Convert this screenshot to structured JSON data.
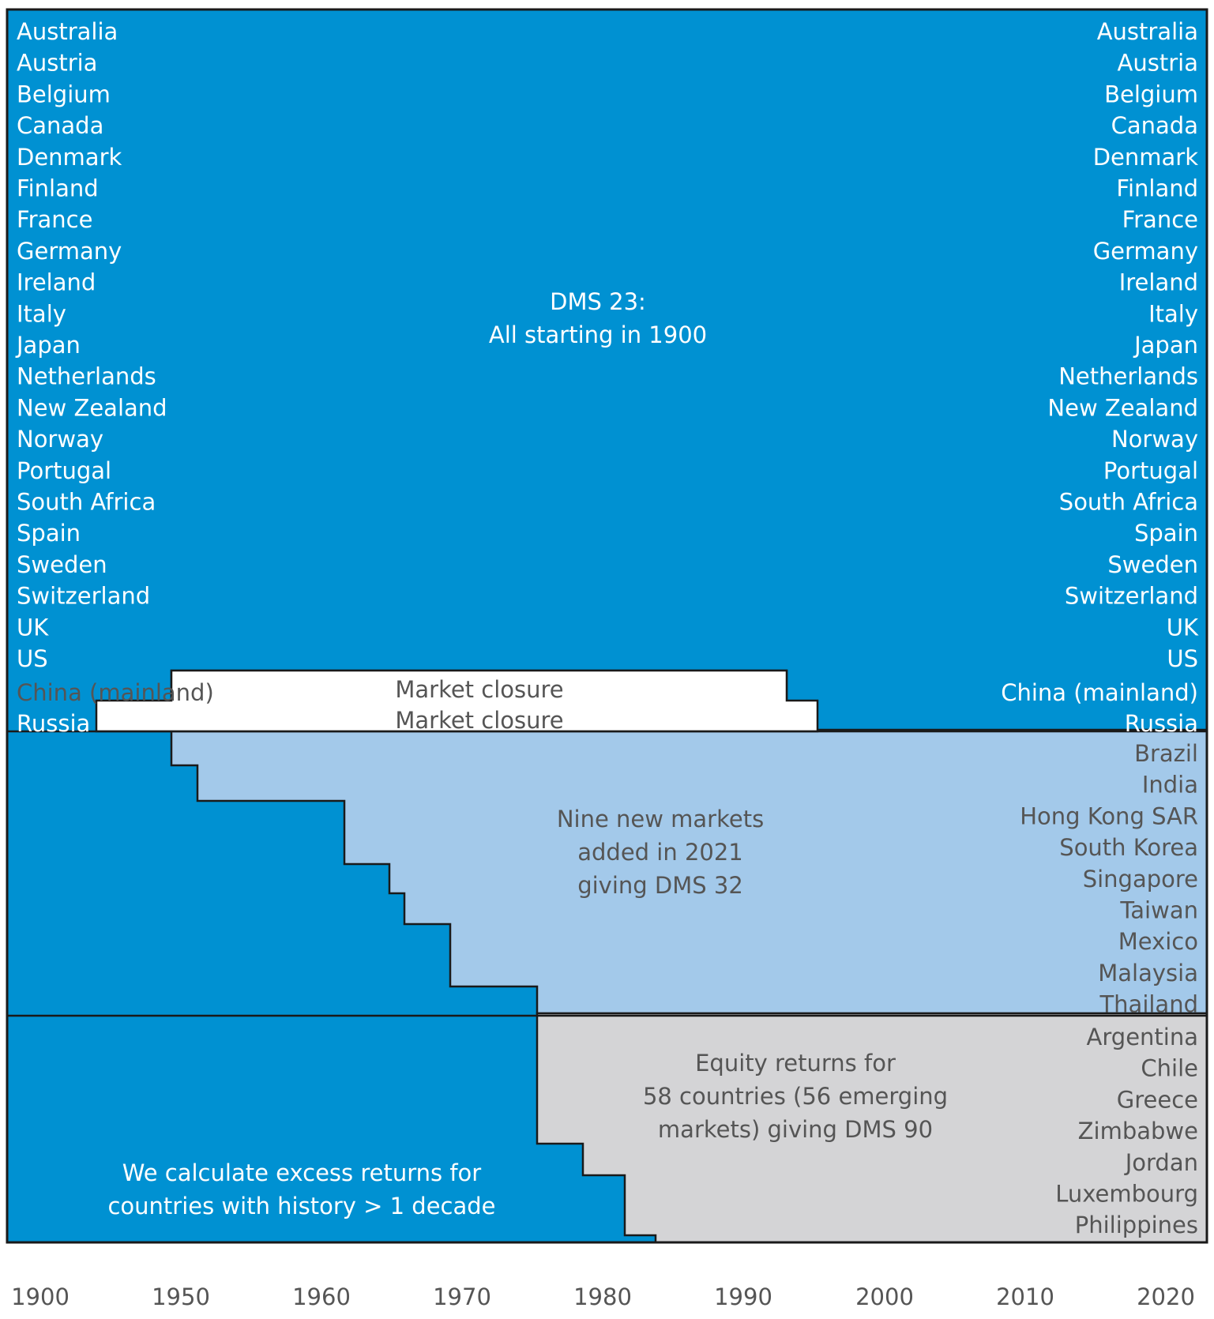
{
  "colors": {
    "dms23": "#0091d2",
    "new_markets": "#a3c9ea",
    "emerging": "#d4d4d6",
    "closure": "#ffffff",
    "white_text": "#ffffff",
    "dark_text": "#555555",
    "outline": "#1a1a1a"
  },
  "dms23": {
    "label_line1": "DMS 23:",
    "label_line2": "All starting in 1900",
    "countries": [
      "Australia",
      "Austria",
      "Belgium",
      "Canada",
      "Denmark",
      "Finland",
      "France",
      "Germany",
      "Ireland",
      "Italy",
      "Japan",
      "Netherlands",
      "New Zealand",
      "Norway",
      "Portugal",
      "South Africa",
      "Spain",
      "Sweden",
      "Switzerland",
      "UK",
      "US"
    ]
  },
  "closures": [
    {
      "country": "China (mainland)",
      "label": "Market closure",
      "from_year": 1949,
      "to_year": 1992
    },
    {
      "country": "Russia",
      "label": "Market closure",
      "from_year": 1917,
      "to_year": 1995
    }
  ],
  "new_markets": {
    "label_line1": "Nine new markets",
    "label_line2": "added in 2021",
    "label_line3": "giving DMS 32",
    "countries": [
      "Brazil",
      "India",
      "Hong Kong SAR",
      "South Korea",
      "Singapore",
      "Taiwan",
      "Mexico",
      "Malaysia",
      "Thailand"
    ],
    "start_years": [
      1949,
      1951,
      1962,
      1965,
      1966,
      1969,
      1975
    ]
  },
  "emerging": {
    "label_line1": "Equity returns for",
    "label_line2": "58 countries (56 emerging",
    "label_line3": "markets) giving DMS 90",
    "countries": [
      "Argentina",
      "Chile",
      "Greece",
      "Zimbabwe",
      "Jordan",
      "Luxembourg",
      "Philippines"
    ],
    "start_years": [
      1975,
      1978,
      1981,
      1983
    ]
  },
  "excess_note": {
    "line1": "We calculate excess returns for",
    "line2": "countries with history > 1 decade"
  },
  "x_axis": {
    "ticks": [
      "1900",
      "1950",
      "1960",
      "1970",
      "1980",
      "1990",
      "2000",
      "2010",
      "2020"
    ]
  }
}
